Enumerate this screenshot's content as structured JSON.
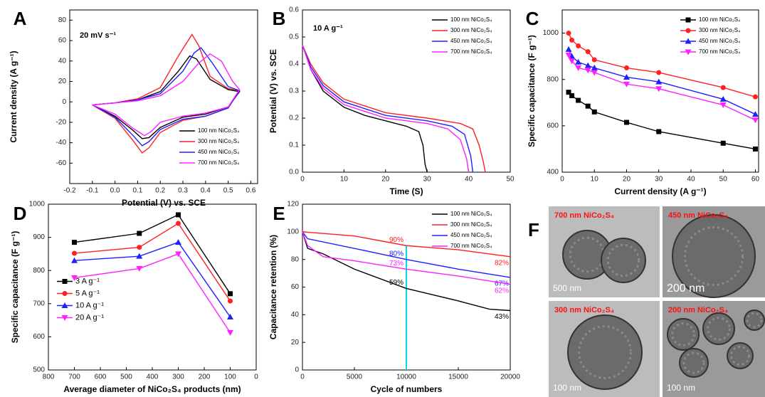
{
  "chart_data": [
    {
      "type": "line",
      "panel": "A",
      "annotation": "20 mV s⁻¹",
      "x_label": "Potential (V) vs. SCE",
      "y_label": "Current density (A g⁻¹)",
      "xlim": [
        -0.2,
        0.63
      ],
      "ylim": [
        -80,
        90
      ],
      "xticks": [
        -0.2,
        -0.1,
        {
          "value": 0,
          "label": "0.0"
        },
        0.1,
        0.2,
        0.3,
        0.4,
        0.5,
        0.6
      ],
      "yticks": [
        -60,
        -40,
        -20,
        0,
        20,
        40,
        60,
        80
      ],
      "legend": "bottom-right",
      "series": [
        {
          "name": "100 nm NiCo₂S₄",
          "color": "#000000",
          "x": [
            -0.1,
            0.0,
            0.1,
            0.2,
            0.28,
            0.33,
            0.36,
            0.42,
            0.5,
            0.55,
            0.5,
            0.4,
            0.3,
            0.2,
            0.15,
            0.12,
            0.08,
            0.0,
            -0.1
          ],
          "values": [
            -3,
            -1,
            2,
            10,
            30,
            45,
            42,
            22,
            12,
            10,
            -5,
            -12,
            -15,
            -25,
            -35,
            -36,
            -28,
            -14,
            -3
          ]
        },
        {
          "name": "300 nm NiCo₂S₄",
          "color": "#ff2020",
          "x": [
            -0.1,
            0.0,
            0.1,
            0.2,
            0.28,
            0.34,
            0.37,
            0.42,
            0.5,
            0.55,
            0.5,
            0.4,
            0.3,
            0.2,
            0.15,
            0.12,
            0.08,
            0.0,
            -0.1
          ],
          "values": [
            -3,
            -1,
            3,
            14,
            45,
            66,
            55,
            25,
            13,
            11,
            -6,
            -14,
            -18,
            -30,
            -45,
            -50,
            -38,
            -16,
            -3
          ]
        },
        {
          "name": "450 nm NiCo₂S₄",
          "color": "#2020ff",
          "x": [
            -0.1,
            0.0,
            0.1,
            0.2,
            0.3,
            0.35,
            0.38,
            0.43,
            0.5,
            0.55,
            0.5,
            0.4,
            0.3,
            0.2,
            0.15,
            0.12,
            0.08,
            0.0,
            -0.1
          ],
          "values": [
            -3,
            -1,
            2,
            8,
            30,
            48,
            53,
            38,
            15,
            11,
            -6,
            -14,
            -17,
            -27,
            -39,
            -43,
            -33,
            -15,
            -3
          ]
        },
        {
          "name": "700 nm NiCo₂S₄",
          "color": "#ff20ff",
          "x": [
            -0.1,
            0.0,
            0.1,
            0.2,
            0.3,
            0.37,
            0.42,
            0.47,
            0.52,
            0.55,
            0.5,
            0.4,
            0.3,
            0.2,
            0.16,
            0.13,
            0.08,
            0.0,
            -0.1
          ],
          "values": [
            -3,
            -1,
            1,
            6,
            20,
            38,
            47,
            40,
            20,
            12,
            -5,
            -11,
            -14,
            -20,
            -29,
            -33,
            -26,
            -12,
            -3
          ]
        }
      ]
    },
    {
      "type": "line",
      "panel": "B",
      "annotation": "10 A g⁻¹",
      "x_label": "Time (S)",
      "y_label": "Potential (V) vs. SCE",
      "xlim": [
        0,
        50
      ],
      "ylim": [
        0,
        0.6
      ],
      "xticks": [
        0,
        10,
        20,
        30,
        40,
        50
      ],
      "yticks": [
        {
          "value": 0,
          "label": "0.0"
        },
        0.1,
        0.2,
        0.3,
        0.4,
        0.5,
        0.6
      ],
      "legend": "top-right",
      "series": [
        {
          "name": "100 nm NiCo₂S₄",
          "color": "#000000",
          "x": [
            0,
            2,
            5,
            10,
            15,
            20,
            25,
            28,
            29,
            29.5,
            30
          ],
          "values": [
            0.47,
            0.38,
            0.3,
            0.24,
            0.21,
            0.19,
            0.17,
            0.15,
            0.1,
            0.03,
            0
          ]
        },
        {
          "name": "300 nm NiCo₂S₄",
          "color": "#ff2020",
          "x": [
            0,
            2,
            5,
            10,
            20,
            30,
            38,
            41,
            42.5,
            43.5,
            44
          ],
          "values": [
            0.47,
            0.4,
            0.33,
            0.27,
            0.22,
            0.2,
            0.18,
            0.16,
            0.1,
            0.04,
            0
          ]
        },
        {
          "name": "450 nm NiCo₂S₄",
          "color": "#2020ff",
          "x": [
            0,
            2,
            5,
            10,
            20,
            30,
            36,
            39,
            40.5,
            41
          ],
          "values": [
            0.47,
            0.39,
            0.32,
            0.26,
            0.21,
            0.19,
            0.17,
            0.14,
            0.06,
            0
          ]
        },
        {
          "name": "700 nm NiCo₂S₄",
          "color": "#ff20ff",
          "x": [
            0,
            2,
            5,
            10,
            20,
            30,
            35,
            38,
            39.5,
            40
          ],
          "values": [
            0.47,
            0.38,
            0.31,
            0.25,
            0.2,
            0.18,
            0.16,
            0.12,
            0.05,
            0
          ]
        }
      ]
    },
    {
      "type": "line",
      "panel": "C",
      "x_label": "Current density (A g⁻¹)",
      "y_label": "Specific capacitance (F g⁻¹)",
      "xlim": [
        0,
        61
      ],
      "ylim": [
        400,
        1100
      ],
      "xticks": [
        0,
        10,
        20,
        30,
        40,
        50,
        60
      ],
      "yticks": [
        400,
        600,
        800,
        1000
      ],
      "legend": "top-right",
      "series": [
        {
          "name": "100 nm NiCo₂S₄",
          "color": "#000000",
          "marker": "square",
          "x": [
            2,
            3,
            5,
            8,
            10,
            20,
            30,
            50,
            60
          ],
          "values": [
            745,
            730,
            710,
            685,
            660,
            615,
            575,
            525,
            500
          ]
        },
        {
          "name": "300 nm NiCo₂S₄",
          "color": "#ff2020",
          "marker": "circle",
          "x": [
            2,
            3,
            5,
            8,
            10,
            20,
            30,
            50,
            60
          ],
          "values": [
            1000,
            970,
            945,
            920,
            885,
            850,
            830,
            765,
            725
          ]
        },
        {
          "name": "450 nm NiCo₂S₄",
          "color": "#2020ff",
          "marker": "triangle-up",
          "x": [
            2,
            3,
            5,
            8,
            10,
            20,
            30,
            50,
            60
          ],
          "values": [
            930,
            900,
            875,
            860,
            850,
            810,
            790,
            715,
            650
          ]
        },
        {
          "name": "700 nm NiCo₂S₄",
          "color": "#ff20ff",
          "marker": "triangle-down",
          "x": [
            2,
            3,
            5,
            8,
            10,
            20,
            30,
            50,
            60
          ],
          "values": [
            905,
            880,
            850,
            840,
            830,
            780,
            760,
            690,
            625
          ]
        }
      ]
    },
    {
      "type": "line",
      "panel": "D",
      "x_label": "Average diameter of NiCo₂S₄ products (nm)",
      "y_label": "Specific capacitance (F g⁻¹)",
      "xlim": [
        800,
        0
      ],
      "ylim": [
        500,
        1000
      ],
      "xticks": [
        800,
        700,
        600,
        500,
        400,
        300,
        200,
        100,
        0
      ],
      "yticks": [
        500,
        600,
        700,
        800,
        900,
        1000
      ],
      "legend": "center-left",
      "series": [
        {
          "name": "3  A g⁻¹",
          "color": "#000000",
          "marker": "square",
          "x": [
            700,
            450,
            300,
            100
          ],
          "values": [
            885,
            912,
            968,
            730
          ]
        },
        {
          "name": "5  A g⁻¹",
          "color": "#ff2020",
          "marker": "circle",
          "x": [
            700,
            450,
            300,
            100
          ],
          "values": [
            852,
            870,
            942,
            708
          ]
        },
        {
          "name": "10 A g⁻¹",
          "color": "#2020ff",
          "marker": "triangle-up",
          "x": [
            700,
            450,
            300,
            100
          ],
          "values": [
            830,
            843,
            885,
            660
          ]
        },
        {
          "name": "20 A g⁻¹",
          "color": "#ff20ff",
          "marker": "triangle-down",
          "x": [
            700,
            450,
            300,
            100
          ],
          "values": [
            778,
            806,
            850,
            613
          ]
        }
      ]
    },
    {
      "type": "line",
      "panel": "E",
      "x_label": "Cycle of numbers",
      "y_label": "Capacitance retention (%)",
      "xlim": [
        0,
        20000
      ],
      "ylim": [
        0,
        120
      ],
      "xticks": [
        0,
        5000,
        10000,
        15000,
        20000
      ],
      "yticks": [
        0,
        20,
        40,
        60,
        80,
        100,
        120
      ],
      "legend": "top-right",
      "vline": 10000,
      "vline_color": "#00d8e8",
      "series": [
        {
          "name": "100 nm NiCo₂S₄",
          "color": "#000000",
          "x": [
            0,
            500,
            2000,
            5000,
            10000,
            15000,
            18000,
            20000
          ],
          "values": [
            100,
            88,
            84,
            73,
            59,
            50,
            44,
            43
          ],
          "value_labels": [
            null,
            null,
            null,
            null,
            "59%",
            null,
            null,
            "43%"
          ]
        },
        {
          "name": "300 nm NiCo₂S₄",
          "color": "#ff2020",
          "x": [
            0,
            5000,
            10000,
            15000,
            20000
          ],
          "values": [
            100,
            97,
            90,
            87,
            82
          ],
          "value_labels": [
            null,
            null,
            "90%",
            null,
            "82%"
          ]
        },
        {
          "name": "450 nm NiCo₂S₄",
          "color": "#2020ff",
          "x": [
            0,
            500,
            5000,
            10000,
            15000,
            20000
          ],
          "values": [
            100,
            95,
            88,
            80,
            73,
            67
          ],
          "value_labels": [
            null,
            null,
            null,
            "80%",
            null,
            "67%"
          ]
        },
        {
          "name": "700 nm NiCo₂S₄",
          "color": "#ff20ff",
          "x": [
            0,
            500,
            2000,
            5000,
            10000,
            15000,
            20000
          ],
          "values": [
            100,
            90,
            82,
            79,
            73,
            68,
            62
          ],
          "value_labels": [
            null,
            null,
            null,
            null,
            "73%",
            null,
            "62%"
          ]
        }
      ]
    }
  ],
  "figure_f": {
    "panel": "F",
    "images": [
      {
        "label": "700 nm NiCo₂S₄",
        "scale_bar": "500 nm"
      },
      {
        "label": "450 nm NiCo₂S₄",
        "scale_bar": "200 nm"
      },
      {
        "label": "300 nm NiCo₂S₄",
        "scale_bar": "100 nm"
      },
      {
        "label": "200 nm NiCo₂S₄",
        "scale_bar": "100 nm"
      }
    ]
  }
}
